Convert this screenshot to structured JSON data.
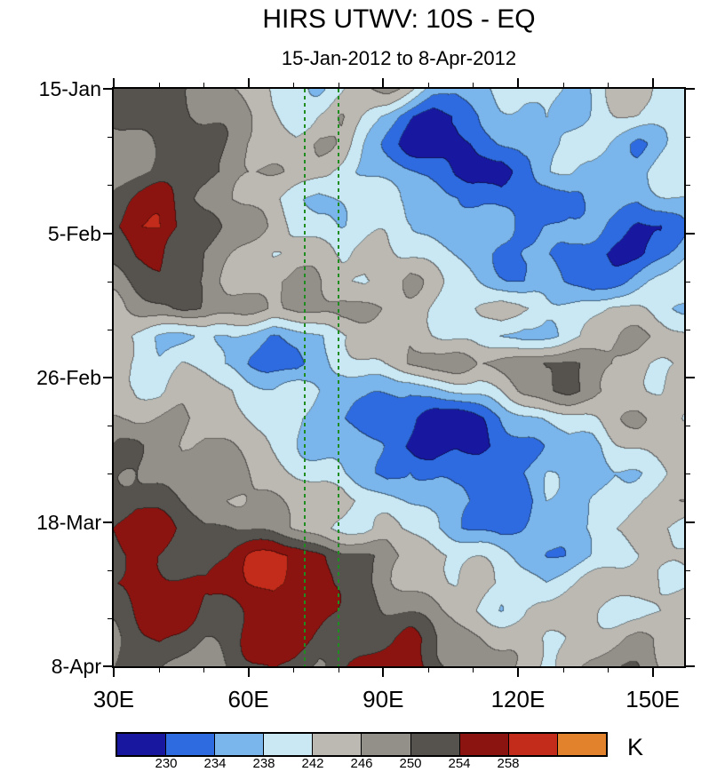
{
  "header": {
    "title": "HIRS UTWV: 10S - EQ",
    "subtitle": "15-Jan-2012 to 8-Apr-2012"
  },
  "colorbar": {
    "unit_label": "K"
  },
  "chart_data": {
    "type": "heatmap",
    "title": "HIRS UTWV: 10S - EQ",
    "subtitle": "15-Jan-2012 to 8-Apr-2012",
    "units": "K",
    "x_axis": {
      "range": [
        30,
        157
      ],
      "major_ticks": [
        {
          "lon": 30,
          "label": "30E"
        },
        {
          "lon": 60,
          "label": "60E"
        },
        {
          "lon": 90,
          "label": "90E"
        },
        {
          "lon": 120,
          "label": "120E"
        },
        {
          "lon": 150,
          "label": "150E"
        }
      ],
      "minor_lons": [
        40,
        50,
        70,
        80,
        100,
        110,
        130,
        140
      ]
    },
    "y_axis": {
      "range_days": [
        0,
        84
      ],
      "major_ticks": [
        {
          "day": 0,
          "label": "15-Jan"
        },
        {
          "day": 21,
          "label": "5-Feb"
        },
        {
          "day": 42,
          "label": "26-Feb"
        },
        {
          "day": 63,
          "label": "18-Mar"
        },
        {
          "day": 84,
          "label": "8-Apr"
        }
      ],
      "minor_days": [
        7,
        14,
        28,
        35,
        49,
        56,
        70,
        77
      ]
    },
    "levels": [
      230,
      234,
      238,
      242,
      246,
      250,
      254,
      258,
      262
    ],
    "level_labels": [
      "230",
      "234",
      "238",
      "242",
      "246",
      "250",
      "254",
      "258"
    ],
    "colors": [
      "#1717a0",
      "#2e6be0",
      "#7ab5ec",
      "#c9e8f4",
      "#bcb8b2",
      "#938f89",
      "#56534e",
      "#8c1410",
      "#c32b1a",
      "#e2822d"
    ],
    "reference_lines": {
      "color": "#1f8c1f",
      "style": "dashed",
      "lons": [
        72.5,
        80
      ]
    },
    "grid": {
      "lon_start": 30,
      "lon_end": 157,
      "day_start": 0,
      "day_end": 84,
      "values": [
        [
          249,
          251,
          252,
          251,
          249,
          247,
          245,
          241,
          239,
          238,
          241,
          245,
          246,
          242,
          237,
          236,
          238,
          240,
          239,
          241,
          237,
          239,
          244,
          243,
          240,
          239
        ],
        [
          250,
          252,
          253,
          251,
          249,
          247,
          246,
          243,
          241,
          244,
          246,
          241,
          236,
          231,
          228,
          229,
          233,
          236,
          238,
          240,
          237,
          239,
          241,
          242,
          240,
          238
        ],
        [
          248,
          250,
          252,
          252,
          250,
          248,
          246,
          244,
          243,
          246,
          244,
          239,
          234,
          229,
          227,
          227,
          231,
          234,
          236,
          234,
          238,
          240,
          237,
          235,
          238,
          240
        ],
        [
          247,
          249,
          250,
          252,
          252,
          250,
          248,
          246,
          244,
          242,
          240,
          238,
          236,
          234,
          232,
          230,
          231,
          229,
          233,
          236,
          238,
          236,
          234,
          236,
          239,
          241
        ],
        [
          251,
          254,
          255,
          252,
          249,
          247,
          245,
          242,
          240,
          238,
          240,
          242,
          238,
          236,
          234,
          235,
          233,
          231,
          233,
          231,
          235,
          237,
          236,
          234,
          236,
          238
        ],
        [
          253,
          258,
          259,
          255,
          251,
          248,
          246,
          244,
          242,
          240,
          238,
          240,
          242,
          240,
          238,
          236,
          234,
          236,
          232,
          234,
          236,
          234,
          232,
          230,
          231,
          235
        ],
        [
          251,
          255,
          256,
          252,
          249,
          247,
          245,
          243,
          244,
          242,
          240,
          242,
          244,
          242,
          240,
          238,
          236,
          234,
          236,
          234,
          232,
          230,
          228,
          229,
          233,
          237
        ],
        [
          249,
          251,
          252,
          250,
          248,
          246,
          245,
          246,
          248,
          246,
          244,
          242,
          244,
          246,
          242,
          240,
          238,
          236,
          234,
          236,
          234,
          232,
          234,
          236,
          238,
          240
        ],
        [
          245,
          247,
          249,
          251,
          250,
          248,
          246,
          244,
          246,
          248,
          250,
          248,
          246,
          244,
          242,
          240,
          242,
          244,
          240,
          238,
          240,
          242,
          244,
          242,
          240,
          238
        ],
        [
          242,
          240,
          239,
          238,
          240,
          238,
          236,
          234,
          236,
          238,
          240,
          242,
          244,
          246,
          244,
          242,
          240,
          238,
          236,
          238,
          240,
          242,
          244,
          246,
          246,
          244
        ],
        [
          243,
          241,
          239,
          241,
          239,
          237,
          234,
          235,
          233,
          237,
          239,
          241,
          243,
          246,
          248,
          247,
          245,
          249,
          251,
          252,
          250,
          248,
          246,
          244,
          242,
          241
        ],
        [
          245,
          243,
          241,
          243,
          244,
          242,
          240,
          238,
          240,
          238,
          236,
          237,
          236,
          234,
          236,
          238,
          240,
          242,
          246,
          248,
          250,
          249,
          246,
          244,
          242,
          243
        ],
        [
          246,
          244,
          246,
          248,
          246,
          244,
          242,
          240,
          238,
          236,
          234,
          232,
          229,
          231,
          228,
          227,
          231,
          234,
          236,
          238,
          240,
          242,
          244,
          246,
          244,
          242
        ],
        [
          248,
          250,
          248,
          246,
          248,
          246,
          244,
          242,
          240,
          238,
          236,
          234,
          232,
          229,
          227,
          229,
          227,
          231,
          234,
          236,
          238,
          236,
          240,
          242,
          244,
          246
        ],
        [
          250,
          252,
          250,
          248,
          246,
          248,
          246,
          244,
          242,
          240,
          238,
          236,
          234,
          236,
          233,
          231,
          233,
          231,
          235,
          238,
          236,
          234,
          238,
          240,
          242,
          244
        ],
        [
          252,
          254,
          252,
          250,
          248,
          247,
          248,
          246,
          244,
          242,
          244,
          242,
          240,
          238,
          236,
          237,
          235,
          233,
          232,
          236,
          234,
          238,
          240,
          242,
          244,
          246
        ],
        [
          254,
          256,
          255,
          253,
          251,
          252,
          250,
          248,
          246,
          244,
          242,
          240,
          242,
          240,
          238,
          236,
          234,
          232,
          234,
          236,
          238,
          240,
          242,
          243,
          241,
          239
        ],
        [
          253,
          255,
          254,
          252,
          251,
          253,
          257,
          259,
          259,
          256,
          252,
          250,
          248,
          246,
          244,
          242,
          240,
          238,
          236,
          234,
          236,
          238,
          240,
          242,
          244,
          245
        ],
        [
          254,
          256,
          257,
          256,
          254,
          256,
          258,
          260,
          258,
          254,
          252,
          250,
          248,
          246,
          244,
          242,
          244,
          242,
          240,
          238,
          240,
          242,
          244,
          245,
          243,
          242
        ],
        [
          252,
          254,
          256,
          254,
          252,
          254,
          256,
          258,
          257,
          256,
          254,
          252,
          250,
          248,
          246,
          244,
          242,
          240,
          242,
          244,
          245,
          243,
          241,
          239,
          241,
          243
        ],
        [
          250,
          252,
          254,
          252,
          250,
          252,
          254,
          256,
          255,
          254,
          252,
          251,
          253,
          255,
          251,
          248,
          246,
          244,
          242,
          241,
          243,
          245,
          246,
          247,
          245,
          244
        ],
        [
          249,
          251,
          252,
          250,
          248,
          250,
          252,
          254,
          252,
          250,
          252,
          255,
          257,
          258,
          254,
          250,
          248,
          246,
          244,
          242,
          244,
          246,
          248,
          249,
          247,
          245
        ]
      ]
    }
  }
}
